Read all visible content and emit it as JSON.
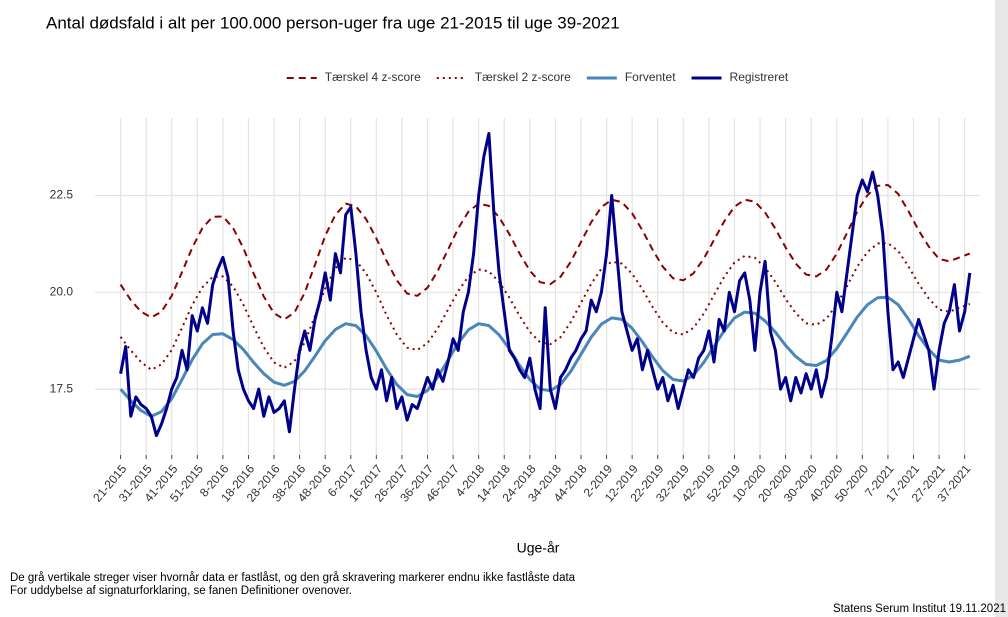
{
  "chart_data": {
    "type": "line",
    "title": "Antal dødsfald i alt per 100.000 person-uger fra uge 21-2015 til uge 39-2021",
    "xlabel": "Uge-år",
    "notes": [
      "De grå vertikale streger viser hvornår data er fastlåst, og den grå skravering markerer endnu ikke fastlåste data",
      "For uddybelse af signaturforklaring, se fanen Definitioner ovenover."
    ],
    "source": "Statens Serum Institut  19.11.2021",
    "xlim": [
      -10,
      336
    ],
    "ylim": [
      15.8,
      24.5
    ],
    "yticks": [
      17.5,
      {
        "value": 20,
        "label": "20.0"
      },
      22.5
    ],
    "xticks": [
      {
        "value": 0,
        "label": "21-2015"
      },
      {
        "value": 10,
        "label": "31-2015"
      },
      {
        "value": 20,
        "label": "41-2015"
      },
      {
        "value": 30,
        "label": "51-2015"
      },
      {
        "value": 40,
        "label": "8-2016"
      },
      {
        "value": 50,
        "label": "18-2016"
      },
      {
        "value": 60,
        "label": "28-2016"
      },
      {
        "value": 70,
        "label": "38-2016"
      },
      {
        "value": 80,
        "label": "48-2016"
      },
      {
        "value": 90,
        "label": "6-2017"
      },
      {
        "value": 100,
        "label": "16-2017"
      },
      {
        "value": 110,
        "label": "26-2017"
      },
      {
        "value": 120,
        "label": "36-2017"
      },
      {
        "value": 130,
        "label": "46-2017"
      },
      {
        "value": 140,
        "label": "4-2018"
      },
      {
        "value": 150,
        "label": "14-2018"
      },
      {
        "value": 160,
        "label": "24-2018"
      },
      {
        "value": 170,
        "label": "34-2018"
      },
      {
        "value": 180,
        "label": "44-2018"
      },
      {
        "value": 190,
        "label": "2-2019"
      },
      {
        "value": 200,
        "label": "12-2019"
      },
      {
        "value": 210,
        "label": "22-2019"
      },
      {
        "value": 220,
        "label": "32-2019"
      },
      {
        "value": 230,
        "label": "42-2019"
      },
      {
        "value": 240,
        "label": "52-2019"
      },
      {
        "value": 250,
        "label": "10-2020"
      },
      {
        "value": 260,
        "label": "20-2020"
      },
      {
        "value": 270,
        "label": "30-2020"
      },
      {
        "value": 280,
        "label": "40-2020"
      },
      {
        "value": 290,
        "label": "50-2020"
      },
      {
        "value": 300,
        "label": "7-2021"
      },
      {
        "value": 310,
        "label": "17-2021"
      },
      {
        "value": 320,
        "label": "27-2021"
      },
      {
        "value": 330,
        "label": "37-2021"
      }
    ],
    "grid": true,
    "legend": "top",
    "series": [
      {
        "name": "Tærskel 4 z-score",
        "color": "#8b0000",
        "style": "dashed",
        "x": [
          0,
          4,
          8,
          12,
          16,
          20,
          24,
          28,
          32,
          36,
          40,
          44,
          48,
          52,
          56,
          60,
          64,
          68,
          72,
          76,
          80,
          84,
          88,
          92,
          96,
          100,
          104,
          108,
          112,
          116,
          120,
          124,
          128,
          132,
          136,
          140,
          144,
          148,
          152,
          156,
          160,
          164,
          168,
          172,
          176,
          180,
          184,
          188,
          192,
          196,
          200,
          204,
          208,
          212,
          216,
          220,
          224,
          228,
          232,
          236,
          240,
          244,
          248,
          252,
          256,
          260,
          264,
          268,
          272,
          276,
          280,
          284,
          288,
          292,
          296,
          300,
          304,
          308,
          312,
          316,
          320,
          324,
          328,
          332
        ],
        "values": [
          20.2,
          19.8,
          19.5,
          19.35,
          19.5,
          19.91,
          20.52,
          21.15,
          21.66,
          21.95,
          21.96,
          21.66,
          21.14,
          20.49,
          19.89,
          19.46,
          19.3,
          19.48,
          19.99,
          20.71,
          21.46,
          22.0,
          22.29,
          22.22,
          21.89,
          21.39,
          20.81,
          20.31,
          19.97,
          19.91,
          20.12,
          20.55,
          21.1,
          21.65,
          22.08,
          22.29,
          22.23,
          21.94,
          21.5,
          21.0,
          20.56,
          20.26,
          20.21,
          20.4,
          20.79,
          21.3,
          21.81,
          22.2,
          22.39,
          22.33,
          22.04,
          21.6,
          21.1,
          20.66,
          20.36,
          20.31,
          20.49,
          20.87,
          21.35,
          21.83,
          22.21,
          22.39,
          22.34,
          22.06,
          21.64,
          21.16,
          20.74,
          20.46,
          20.41,
          20.59,
          21.0,
          21.53,
          22.08,
          22.51,
          22.75,
          22.77,
          22.54,
          22.1,
          21.6,
          21.18,
          20.86,
          20.8,
          20.9,
          21.0
        ]
      },
      {
        "name": "Tærskel 2 z-score",
        "color": "#8b0000",
        "style": "dotted",
        "x": [
          0,
          4,
          8,
          12,
          16,
          20,
          24,
          28,
          32,
          36,
          40,
          44,
          48,
          52,
          56,
          60,
          64,
          68,
          72,
          76,
          80,
          84,
          88,
          92,
          96,
          100,
          104,
          108,
          112,
          116,
          120,
          124,
          128,
          132,
          136,
          140,
          144,
          148,
          152,
          156,
          160,
          164,
          168,
          172,
          176,
          180,
          184,
          188,
          192,
          196,
          200,
          204,
          208,
          212,
          216,
          220,
          224,
          228,
          232,
          236,
          240,
          244,
          248,
          252,
          256,
          260,
          264,
          268,
          272,
          276,
          280,
          284,
          288,
          292,
          296,
          300,
          304,
          308,
          312,
          316,
          320,
          324,
          328,
          332
        ],
        "values": [
          18.85,
          18.5,
          18.2,
          18.0,
          18.14,
          18.51,
          19.08,
          19.67,
          20.13,
          20.4,
          20.41,
          20.15,
          19.68,
          19.11,
          18.58,
          18.19,
          18.05,
          18.22,
          18.71,
          19.39,
          20.1,
          20.62,
          20.89,
          20.82,
          20.49,
          19.99,
          19.41,
          18.91,
          18.57,
          18.51,
          18.69,
          19.07,
          19.55,
          20.03,
          20.41,
          20.59,
          20.54,
          20.27,
          19.86,
          19.39,
          18.98,
          18.71,
          18.66,
          18.84,
          19.23,
          19.73,
          20.22,
          20.61,
          20.79,
          20.74,
          20.48,
          20.08,
          19.62,
          19.22,
          18.96,
          18.91,
          19.08,
          19.45,
          19.93,
          20.4,
          20.77,
          20.94,
          20.89,
          20.64,
          20.27,
          19.83,
          19.46,
          19.2,
          19.16,
          19.32,
          19.69,
          20.16,
          20.66,
          21.04,
          21.26,
          21.27,
          21.07,
          20.67,
          20.22,
          19.84,
          19.55,
          19.5,
          19.6,
          19.7
        ]
      },
      {
        "name": "Forventet",
        "color": "#4a86b8",
        "style": "solid",
        "x": [
          0,
          4,
          8,
          12,
          16,
          20,
          24,
          28,
          32,
          36,
          40,
          44,
          48,
          52,
          56,
          60,
          64,
          68,
          72,
          76,
          80,
          84,
          88,
          92,
          96,
          100,
          104,
          108,
          112,
          116,
          120,
          124,
          128,
          132,
          136,
          140,
          144,
          148,
          152,
          156,
          160,
          164,
          168,
          172,
          176,
          180,
          184,
          188,
          192,
          196,
          200,
          204,
          208,
          212,
          216,
          220,
          224,
          228,
          232,
          236,
          240,
          244,
          248,
          252,
          256,
          260,
          264,
          268,
          272,
          276,
          280,
          284,
          288,
          292,
          296,
          300,
          304,
          308,
          312,
          316,
          320,
          324,
          328,
          332
        ],
        "values": [
          17.5,
          17.2,
          16.95,
          16.8,
          16.92,
          17.25,
          17.75,
          18.26,
          18.67,
          18.91,
          18.93,
          18.78,
          18.52,
          18.19,
          17.9,
          17.68,
          17.6,
          17.7,
          17.97,
          18.35,
          18.75,
          19.04,
          19.19,
          19.14,
          18.88,
          18.48,
          18.02,
          17.62,
          17.36,
          17.31,
          17.47,
          17.81,
          18.25,
          18.69,
          19.03,
          19.19,
          19.14,
          18.9,
          18.54,
          18.11,
          17.75,
          17.5,
          17.46,
          17.62,
          17.96,
          18.4,
          18.84,
          19.18,
          19.34,
          19.3,
          19.07,
          18.72,
          18.33,
          17.98,
          17.75,
          17.71,
          17.86,
          18.19,
          18.6,
          19.01,
          19.34,
          19.49,
          19.46,
          19.26,
          18.97,
          18.63,
          18.34,
          18.14,
          18.11,
          18.24,
          18.55,
          18.95,
          19.36,
          19.68,
          19.86,
          19.87,
          19.68,
          19.31,
          18.88,
          18.52,
          18.25,
          18.2,
          18.25,
          18.35
        ]
      },
      {
        "name": "Registreret",
        "color": "#00008b",
        "style": "solid",
        "x": [
          0,
          2,
          4,
          6,
          8,
          10,
          12,
          14,
          16,
          18,
          20,
          22,
          24,
          26,
          28,
          30,
          32,
          34,
          36,
          38,
          40,
          42,
          44,
          46,
          48,
          50,
          52,
          54,
          56,
          58,
          60,
          62,
          64,
          66,
          68,
          70,
          72,
          74,
          76,
          78,
          80,
          82,
          84,
          86,
          88,
          90,
          92,
          94,
          96,
          98,
          100,
          102,
          104,
          106,
          108,
          110,
          112,
          114,
          116,
          118,
          120,
          122,
          124,
          126,
          128,
          130,
          132,
          134,
          136,
          138,
          140,
          142,
          144,
          146,
          148,
          150,
          152,
          154,
          156,
          158,
          160,
          162,
          164,
          166,
          168,
          170,
          172,
          174,
          176,
          178,
          180,
          182,
          184,
          186,
          188,
          190,
          192,
          194,
          196,
          198,
          200,
          202,
          204,
          206,
          208,
          210,
          212,
          214,
          216,
          218,
          220,
          222,
          224,
          226,
          228,
          230,
          232,
          234,
          236,
          238,
          240,
          242,
          244,
          246,
          248,
          250,
          252,
          254,
          256,
          258,
          260,
          262,
          264,
          266,
          268,
          270,
          272,
          274,
          276,
          278,
          280,
          282,
          284,
          286,
          288,
          290,
          292,
          294,
          296,
          298,
          300,
          302,
          304,
          306,
          308,
          310,
          312,
          314,
          316,
          318,
          320,
          322,
          324,
          326,
          328,
          330,
          332
        ],
        "values": [
          17.9,
          18.6,
          16.8,
          17.3,
          17.1,
          17.0,
          16.8,
          16.3,
          16.6,
          17.0,
          17.5,
          17.8,
          18.5,
          18.0,
          19.4,
          19.0,
          19.6,
          19.2,
          20.2,
          20.6,
          20.9,
          20.4,
          19.0,
          18.0,
          17.5,
          17.2,
          17.0,
          17.5,
          16.8,
          17.3,
          16.9,
          17.0,
          17.2,
          16.4,
          17.5,
          18.5,
          19.0,
          18.5,
          19.3,
          19.8,
          20.5,
          19.8,
          21.0,
          20.5,
          22.0,
          22.2,
          21.0,
          19.5,
          18.5,
          17.8,
          17.5,
          18.0,
          17.2,
          17.8,
          17.0,
          17.3,
          16.7,
          17.1,
          17.0,
          17.4,
          17.8,
          17.5,
          18.0,
          17.7,
          18.2,
          18.8,
          18.5,
          19.5,
          20.0,
          21.0,
          22.5,
          23.5,
          24.1,
          22.0,
          20.5,
          19.5,
          18.5,
          18.3,
          18.0,
          17.8,
          18.3,
          17.5,
          17.0,
          19.6,
          17.5,
          17.0,
          17.8,
          18.0,
          18.3,
          18.5,
          18.8,
          19.0,
          19.8,
          19.5,
          20.0,
          21.0,
          22.5,
          21.0,
          19.5,
          19.0,
          18.5,
          18.8,
          18.0,
          18.5,
          18.0,
          17.5,
          17.8,
          17.2,
          17.6,
          17.0,
          17.5,
          18.0,
          17.8,
          18.3,
          18.5,
          19.0,
          18.2,
          19.3,
          19.0,
          20.0,
          19.5,
          20.3,
          20.5,
          19.8,
          18.5,
          20.0,
          20.8,
          19.0,
          18.5,
          17.5,
          17.8,
          17.2,
          17.8,
          17.4,
          17.9,
          17.5,
          18.0,
          17.3,
          17.8,
          18.8,
          20.0,
          19.5,
          20.5,
          21.5,
          22.5,
          22.9,
          22.6,
          23.1,
          22.5,
          21.5,
          19.5,
          18.0,
          18.2,
          17.8,
          18.3,
          18.8,
          19.3,
          18.9,
          18.5,
          17.5,
          18.5,
          19.2,
          19.5,
          20.2,
          19.0,
          19.5,
          20.5
        ]
      }
    ]
  }
}
